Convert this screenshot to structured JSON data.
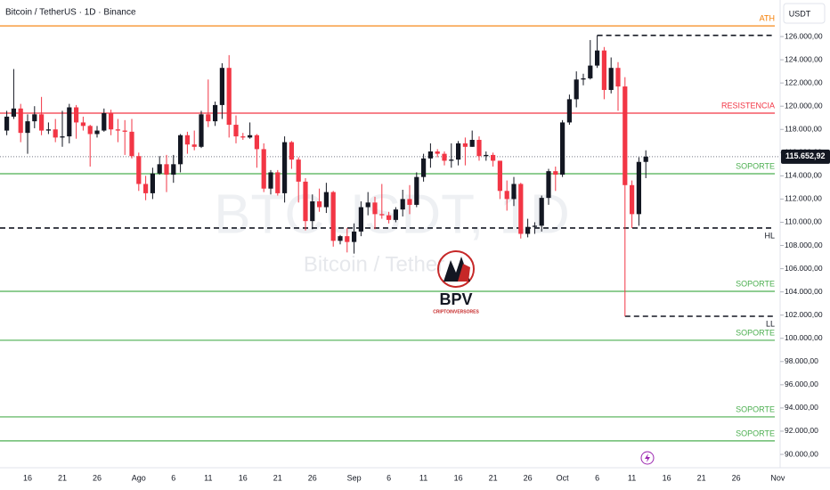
{
  "chart_data": {
    "type": "candlestick",
    "title": "Bitcoin / TetherUS · 1D · Binance",
    "currency": "USDT",
    "watermark": "BTCUSDT, 1D",
    "watermark_subtitle": "Bitcoin / Tether",
    "logo": {
      "name": "BPV",
      "tagline": "CRIPTOINVERSORES"
    },
    "up_color": "#131722",
    "down_color": "#f23645",
    "categories": [
      null,
      null,
      null,
      "16",
      null,
      null,
      null,
      null,
      "21",
      null,
      null,
      null,
      null,
      "26",
      null,
      null,
      null,
      null,
      null,
      "Ago",
      null,
      null,
      null,
      null,
      "6",
      null,
      null,
      null,
      null,
      "11",
      null,
      null,
      null,
      null,
      "16",
      null,
      null,
      null,
      null,
      "21",
      null,
      null,
      null,
      null,
      "26",
      null,
      null,
      null,
      null,
      null,
      "Sep",
      null,
      null,
      null,
      null,
      "6",
      null,
      null,
      null,
      null,
      "11",
      null,
      null,
      null,
      null,
      "16",
      null,
      null,
      null,
      null,
      "21",
      null,
      null,
      null,
      null,
      "26",
      null,
      null,
      null,
      null,
      "Oct",
      null,
      null,
      null,
      null,
      "6",
      null,
      null,
      null,
      null,
      "11",
      null,
      null,
      null,
      null,
      "16",
      null,
      null,
      null,
      null,
      "21",
      null,
      null,
      null,
      null,
      "26",
      null,
      null,
      null,
      null,
      null,
      "Nov"
    ],
    "open": [
      117900,
      119100,
      119800,
      117700,
      118700,
      119300,
      117900,
      118000,
      117300,
      117400,
      119900,
      118600,
      118300,
      117600,
      117900,
      119400,
      118000,
      117900,
      117800,
      115700,
      113300,
      112500,
      114200,
      115000,
      114100,
      115000,
      117500,
      116700,
      116500,
      119300,
      118700,
      120100,
      123300,
      118400,
      117400,
      117300,
      117500,
      116300,
      112900,
      114300,
      112500,
      116900,
      115400,
      113500,
      110100,
      111800,
      111300,
      112600,
      108400,
      108800,
      108300,
      109200,
      111300,
      111700,
      110700,
      110600,
      110200,
      111100,
      112000,
      111500,
      113900,
      115500,
      116100,
      115900,
      115300,
      115400,
      116800,
      116500,
      117100,
      115700,
      115800,
      115300,
      112700,
      112000,
      113300,
      109000,
      109600,
      109700,
      112100,
      114400,
      114100,
      118600,
      120600,
      122300,
      122400,
      123500,
      124800,
      121400,
      123300,
      121700,
      113200,
      110700,
      115200,
      null,
      null,
      null,
      null,
      null,
      null,
      null,
      null,
      null,
      null,
      null,
      null,
      null,
      null,
      null,
      null,
      null,
      null,
      null
    ],
    "high": [
      119600,
      123200,
      120200,
      119300,
      120000,
      120800,
      118600,
      118900,
      119600,
      120200,
      120100,
      119100,
      118400,
      118300,
      119800,
      119700,
      118900,
      118800,
      118900,
      116000,
      114000,
      114700,
      115700,
      115800,
      115800,
      117600,
      117800,
      117900,
      119600,
      122300,
      120400,
      123700,
      124400,
      119200,
      117700,
      118600,
      117600,
      116800,
      114500,
      114500,
      117400,
      117000,
      115600,
      113800,
      112400,
      112900,
      113400,
      112700,
      108900,
      109500,
      109900,
      111800,
      112600,
      112200,
      113300,
      110900,
      111300,
      112800,
      113200,
      114300,
      115900,
      116800,
      116300,
      116100,
      116800,
      117000,
      117300,
      117900,
      117400,
      116100,
      116000,
      115300,
      113600,
      113900,
      113400,
      110300,
      110000,
      112300,
      114600,
      114800,
      118800,
      121000,
      123000,
      122800,
      125700,
      126100,
      125100,
      124200,
      123800,
      122500,
      113600,
      115600,
      116200,
      null,
      null,
      null,
      null,
      null,
      null,
      null,
      null,
      null,
      null,
      null,
      null,
      null,
      null,
      null,
      null,
      null,
      null,
      null
    ],
    "low": [
      117500,
      118900,
      116900,
      115900,
      118100,
      117500,
      117600,
      116900,
      116500,
      116800,
      117200,
      117900,
      114800,
      117300,
      117800,
      117500,
      116900,
      115800,
      115500,
      112700,
      111900,
      112000,
      114100,
      112600,
      113400,
      114300,
      115900,
      116200,
      116400,
      118200,
      118300,
      118900,
      117300,
      116800,
      117100,
      117200,
      114700,
      112600,
      112400,
      112300,
      111700,
      114600,
      111700,
      109300,
      109400,
      110900,
      110800,
      107900,
      108100,
      107400,
      107300,
      108800,
      110600,
      109400,
      110300,
      109900,
      110000,
      110500,
      110700,
      111300,
      113500,
      114700,
      115600,
      114900,
      114700,
      114900,
      114900,
      116500,
      115300,
      115300,
      114800,
      112000,
      111000,
      111400,
      108600,
      108700,
      109000,
      109200,
      111500,
      112700,
      113900,
      118400,
      119900,
      121800,
      122300,
      123300,
      120600,
      121100,
      119600,
      101900,
      109500,
      109700,
      113800,
      null,
      null,
      null,
      null,
      null,
      null,
      null,
      null,
      null,
      null,
      null,
      null,
      null,
      null,
      null,
      null,
      null,
      null,
      null
    ],
    "close": [
      119100,
      119800,
      117700,
      118700,
      119300,
      117900,
      118000,
      117300,
      117400,
      119900,
      118600,
      118300,
      117600,
      117900,
      119400,
      118000,
      117900,
      117800,
      115700,
      113300,
      112500,
      114200,
      115000,
      114100,
      115000,
      117500,
      116700,
      116500,
      119300,
      118700,
      120100,
      123300,
      118400,
      117400,
      117300,
      117500,
      116300,
      112900,
      114300,
      112500,
      116900,
      115400,
      113500,
      110100,
      111800,
      111300,
      112600,
      108400,
      108800,
      108300,
      109200,
      111300,
      111700,
      110700,
      110600,
      110200,
      111100,
      112000,
      111500,
      113900,
      115500,
      116100,
      115900,
      115300,
      115400,
      116800,
      116500,
      117100,
      115700,
      115800,
      115300,
      112700,
      112000,
      113300,
      109000,
      109600,
      109700,
      112100,
      114400,
      114100,
      118600,
      120600,
      122300,
      122400,
      123500,
      124800,
      121400,
      123300,
      121700,
      113200,
      110700,
      115200,
      115652.92,
      null,
      null,
      null,
      null,
      null,
      null,
      null,
      null,
      null,
      null,
      null,
      null,
      null,
      null,
      null,
      null,
      null,
      null,
      null
    ],
    "last_price": {
      "value": 115652.92,
      "label": "115.652,92"
    },
    "levels": [
      {
        "label": "ATH",
        "value": 126920,
        "color": "#f57c00",
        "style": "solid"
      },
      {
        "label": "RESISTENCIA",
        "value": 119400,
        "color": "#f23645",
        "style": "solid"
      },
      {
        "label": "SOPORTE",
        "value": 114180,
        "color": "#4caf50",
        "style": "solid"
      },
      {
        "label": "HL",
        "value": 109500,
        "color": "#131722",
        "style": "dashed"
      },
      {
        "label": "SOPORTE",
        "value": 104050,
        "color": "#4caf50",
        "style": "solid"
      },
      {
        "label": "LL",
        "value": 101900,
        "color": "#131722",
        "style": "dashed"
      },
      {
        "label": "SOPORTE",
        "value": 99830,
        "color": "#4caf50",
        "style": "solid"
      },
      {
        "label": "SOPORTE",
        "value": 93230,
        "color": "#4caf50",
        "style": "solid"
      },
      {
        "label": "SOPORTE",
        "value": 91160,
        "color": "#4caf50",
        "style": "solid"
      }
    ],
    "ylim": [
      88850,
      129150
    ],
    "yticks": [
      {
        "value": 90000,
        "label": "90.000,00"
      },
      {
        "value": 92000,
        "label": "92.000,00"
      },
      {
        "value": 94000,
        "label": "94.000,00"
      },
      {
        "value": 96000,
        "label": "96.000,00"
      },
      {
        "value": 98000,
        "label": "98.000,00"
      },
      {
        "value": 100000,
        "label": "100.000,00"
      },
      {
        "value": 102000,
        "label": "102.000,00"
      },
      {
        "value": 104000,
        "label": "104.000,00"
      },
      {
        "value": 106000,
        "label": "106.000,00"
      },
      {
        "value": 108000,
        "label": "108.000,00"
      },
      {
        "value": 110000,
        "label": "110.000,00"
      },
      {
        "value": 112000,
        "label": "112.000,00"
      },
      {
        "value": 114000,
        "label": "114.000,00"
      },
      {
        "value": 116000,
        "label": "116.000,00"
      },
      {
        "value": 118000,
        "label": "118.000,00"
      },
      {
        "value": 120000,
        "label": "120.000,00"
      },
      {
        "value": 122000,
        "label": "122.000,00"
      },
      {
        "value": 124000,
        "label": "124.000,00"
      },
      {
        "value": 126000,
        "label": "126.000,00"
      }
    ],
    "grid": false
  }
}
